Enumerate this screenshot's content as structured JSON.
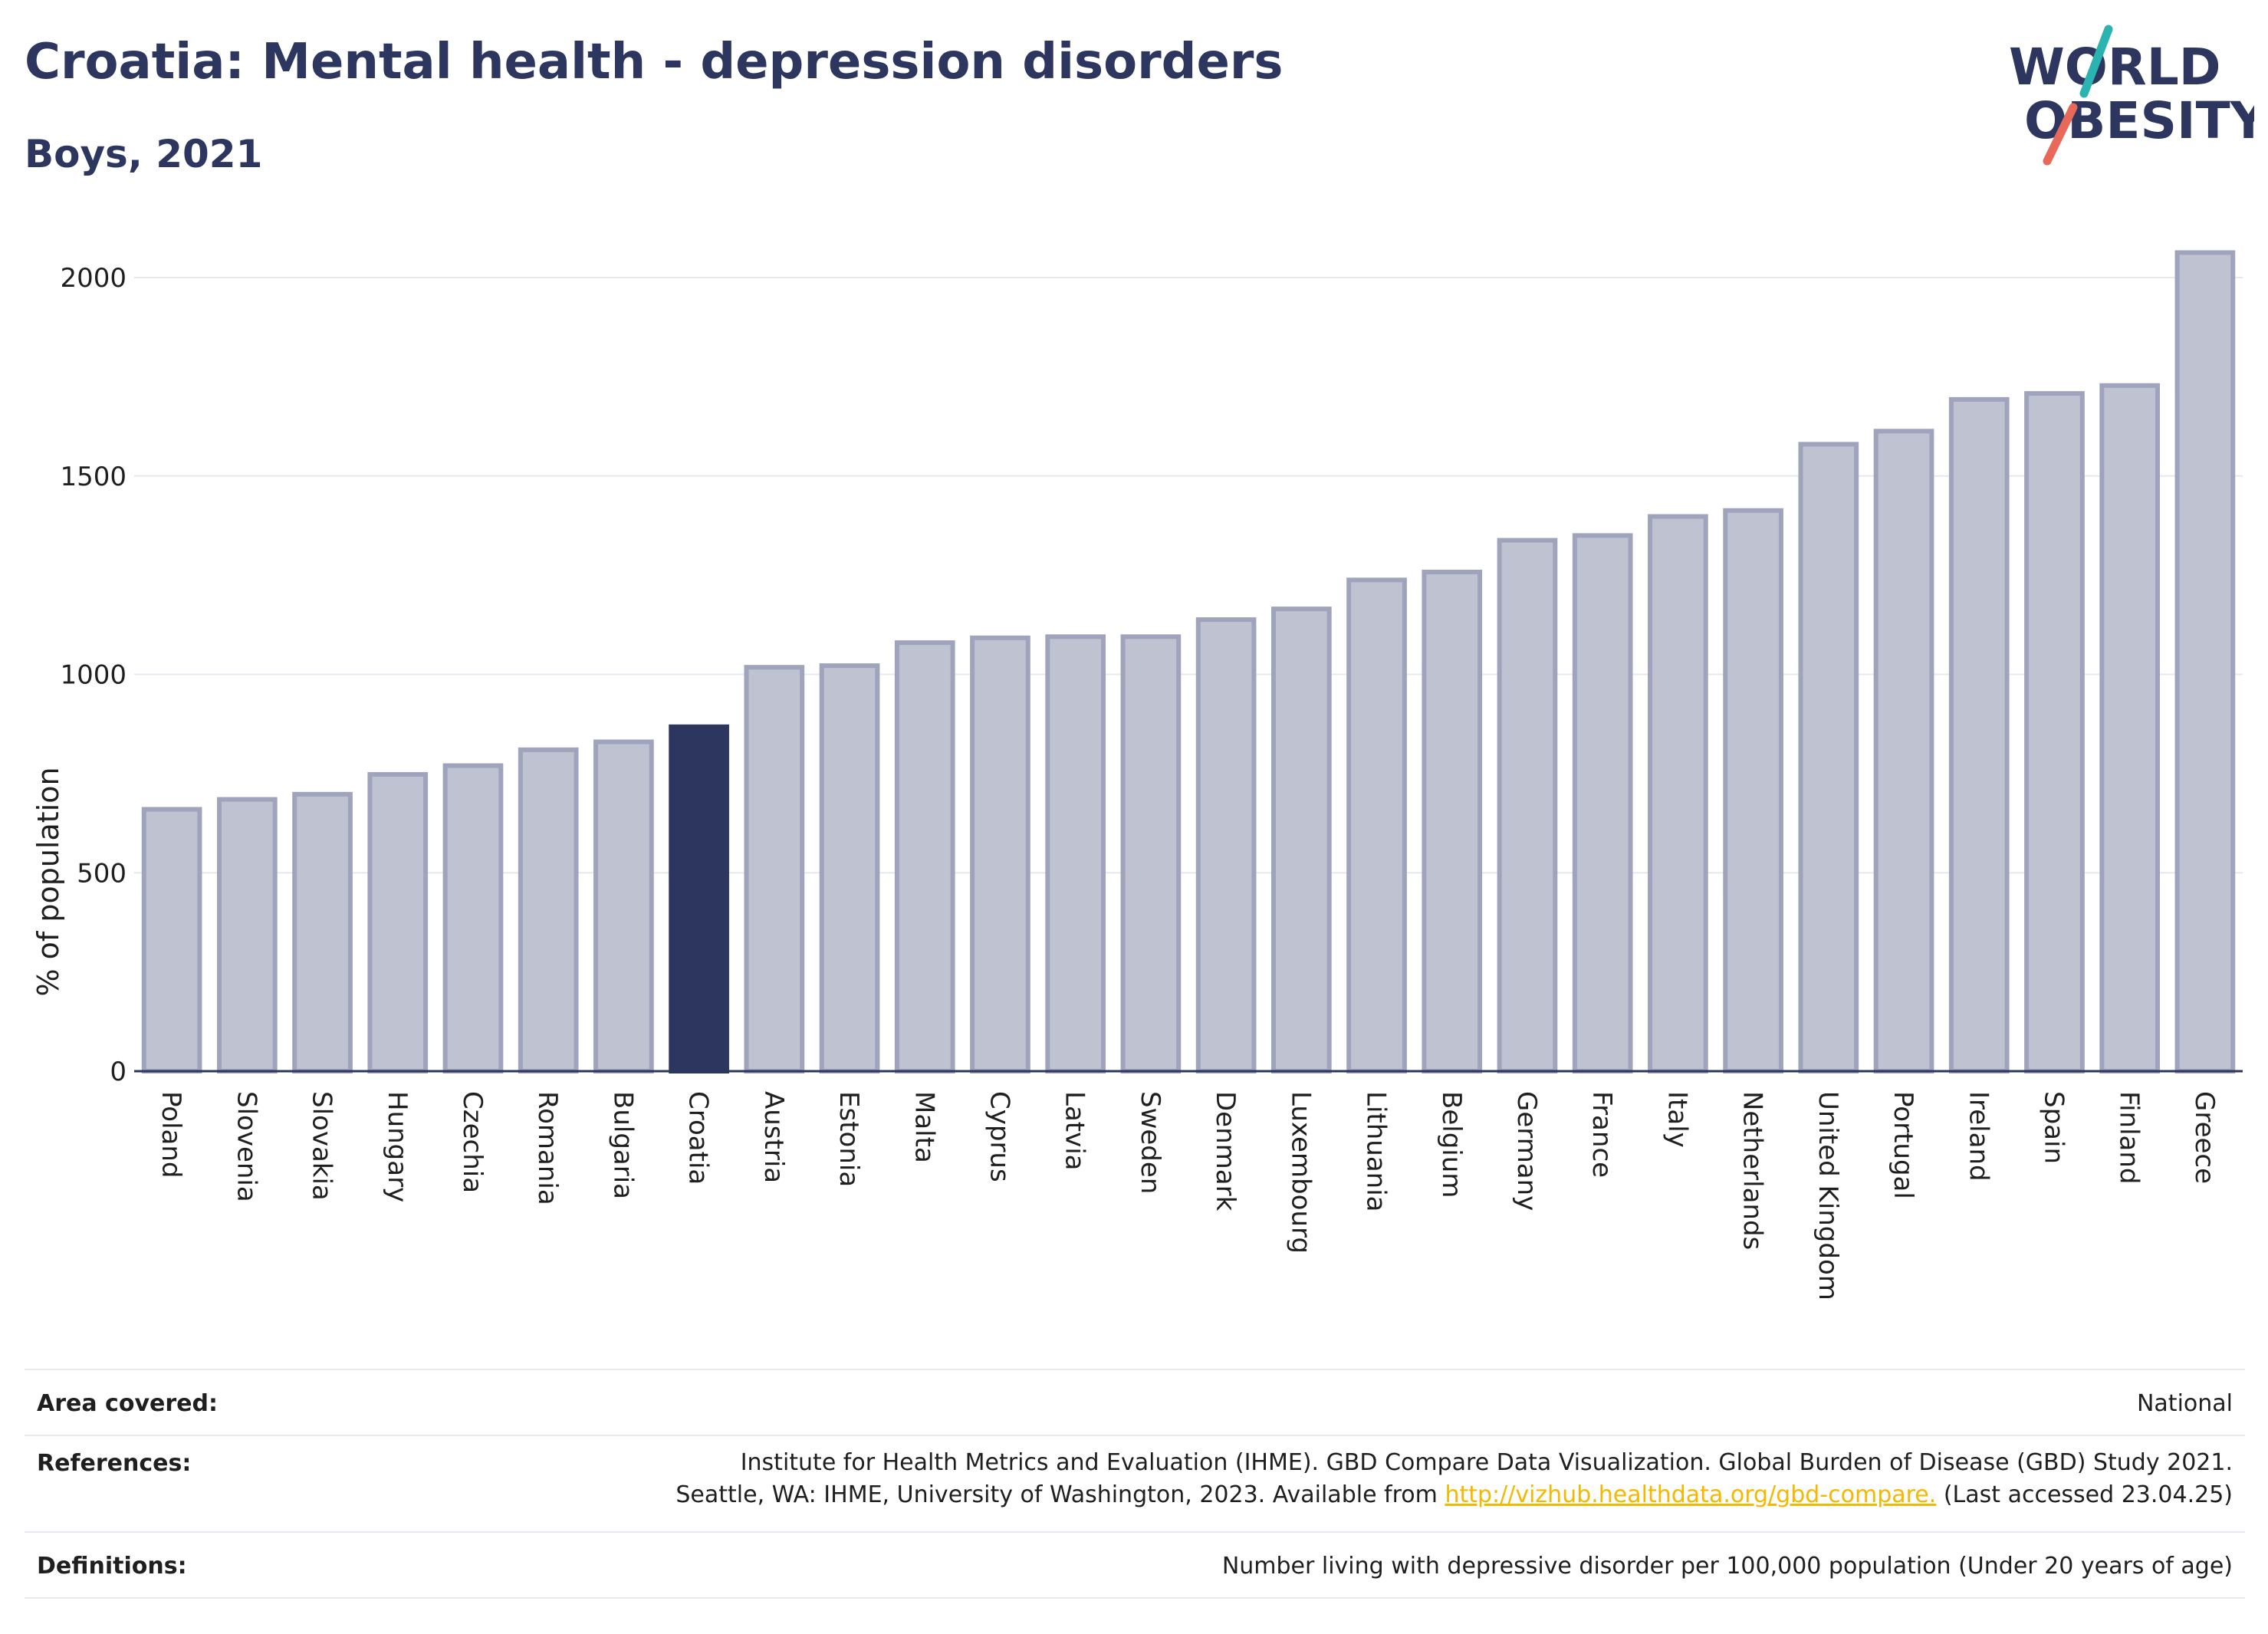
{
  "header": {
    "title": "Croatia: Mental health - depression disorders",
    "subtitle": "Boys, 2021"
  },
  "logo": {
    "line1": "WORLD",
    "line2": "OBESITY",
    "colors": {
      "text": "#2c365e",
      "slash_teal": "#2ab3b1",
      "slash_red": "#e8685a"
    }
  },
  "chart_data": {
    "type": "bar",
    "ylabel": "% of population",
    "xlabel": "",
    "ylim": [
      0,
      2100
    ],
    "yticks": [
      0,
      500,
      1000,
      1500,
      2000
    ],
    "grid": true,
    "highlight": "Croatia",
    "colors": {
      "bar": "#bfc2d0",
      "bar_edge": "#9fa3bb",
      "highlight": "#2c365e"
    },
    "categories": [
      "Poland",
      "Slovenia",
      "Slovakia",
      "Hungary",
      "Czechia",
      "Romania",
      "Bulgaria",
      "Croatia",
      "Austria",
      "Estonia",
      "Malta",
      "Cyprus",
      "Latvia",
      "Sweden",
      "Denmark",
      "Luxembourg",
      "Lithuania",
      "Belgium",
      "Germany",
      "France",
      "Italy",
      "Netherlands",
      "United Kingdom",
      "Portugal",
      "Ireland",
      "Spain",
      "Finland",
      "Greece"
    ],
    "values": [
      660,
      685,
      698,
      748,
      770,
      810,
      830,
      868,
      1018,
      1022,
      1080,
      1092,
      1095,
      1095,
      1138,
      1165,
      1238,
      1258,
      1338,
      1350,
      1398,
      1413,
      1580,
      1613,
      1693,
      1708,
      1728,
      2063
    ]
  },
  "info": {
    "area_label": "Area covered:",
    "area_value": "National",
    "references_label": "References:",
    "references_line1": "Institute for Health Metrics and Evaluation (IHME). GBD Compare Data Visualization. Global Burden of Disease (GBD) Study 2021.",
    "references_line2_pre": "Seattle, WA: IHME, University of Washington, 2023. Available from",
    "references_link": "http://vizhub.healthdata.org/gbd-compare.",
    "references_line2_post": "(Last accessed 23.04.25)",
    "definitions_label": "Definitions:",
    "definitions_value": "Number living with depressive disorder per 100,000 population (Under 20 years of age)"
  }
}
